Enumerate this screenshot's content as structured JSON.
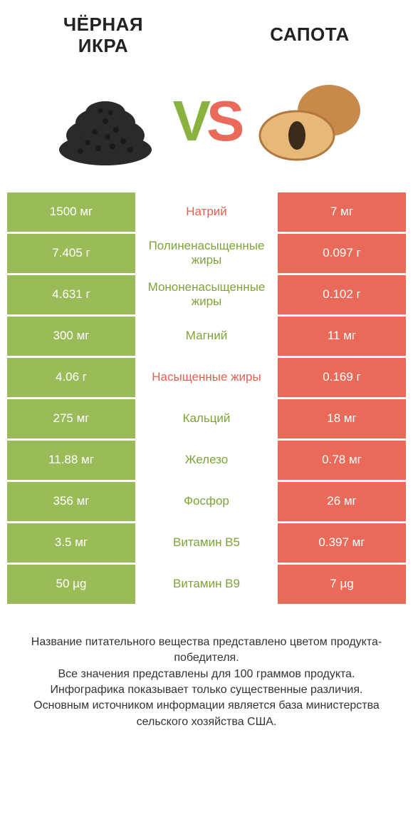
{
  "header": {
    "left_title": "ЧЁРНАЯ\nИКРА",
    "right_title": "САПОТА",
    "vs_v": "V",
    "vs_s": "S"
  },
  "colors": {
    "green": "#9bbb59",
    "orange": "#ea6a5a",
    "text_green": "#7da339",
    "text_orange": "#e2604f",
    "background": "#ffffff"
  },
  "table": {
    "left_color": "green",
    "right_color": "orange",
    "rows": [
      {
        "left": "1500 мг",
        "label": "Натрий",
        "right": "7 мг",
        "winner": "orange"
      },
      {
        "left": "7.405 г",
        "label": "Полиненасыщенные жиры",
        "right": "0.097 г",
        "winner": "green"
      },
      {
        "left": "4.631 г",
        "label": "Мононенасыщенные жиры",
        "right": "0.102 г",
        "winner": "green"
      },
      {
        "left": "300 мг",
        "label": "Магний",
        "right": "11 мг",
        "winner": "green"
      },
      {
        "left": "4.06 г",
        "label": "Насыщенные жиры",
        "right": "0.169 г",
        "winner": "orange"
      },
      {
        "left": "275 мг",
        "label": "Кальций",
        "right": "18 мг",
        "winner": "green"
      },
      {
        "left": "11.88 мг",
        "label": "Железо",
        "right": "0.78 мг",
        "winner": "green"
      },
      {
        "left": "356 мг",
        "label": "Фосфор",
        "right": "26 мг",
        "winner": "green"
      },
      {
        "left": "3.5 мг",
        "label": "Витамин B5",
        "right": "0.397 мг",
        "winner": "green"
      },
      {
        "left": "50 µg",
        "label": "Витамин B9",
        "right": "7 µg",
        "winner": "green"
      }
    ]
  },
  "footer": {
    "line1": "Название питательного вещества представлено цветом продукта-победителя.",
    "line2": "Все значения представлены для 100 граммов продукта.",
    "line3": "Инфографика показывает только существенные различия.",
    "line4": "Основным источником информации является база министерства сельского хозяйства США."
  }
}
